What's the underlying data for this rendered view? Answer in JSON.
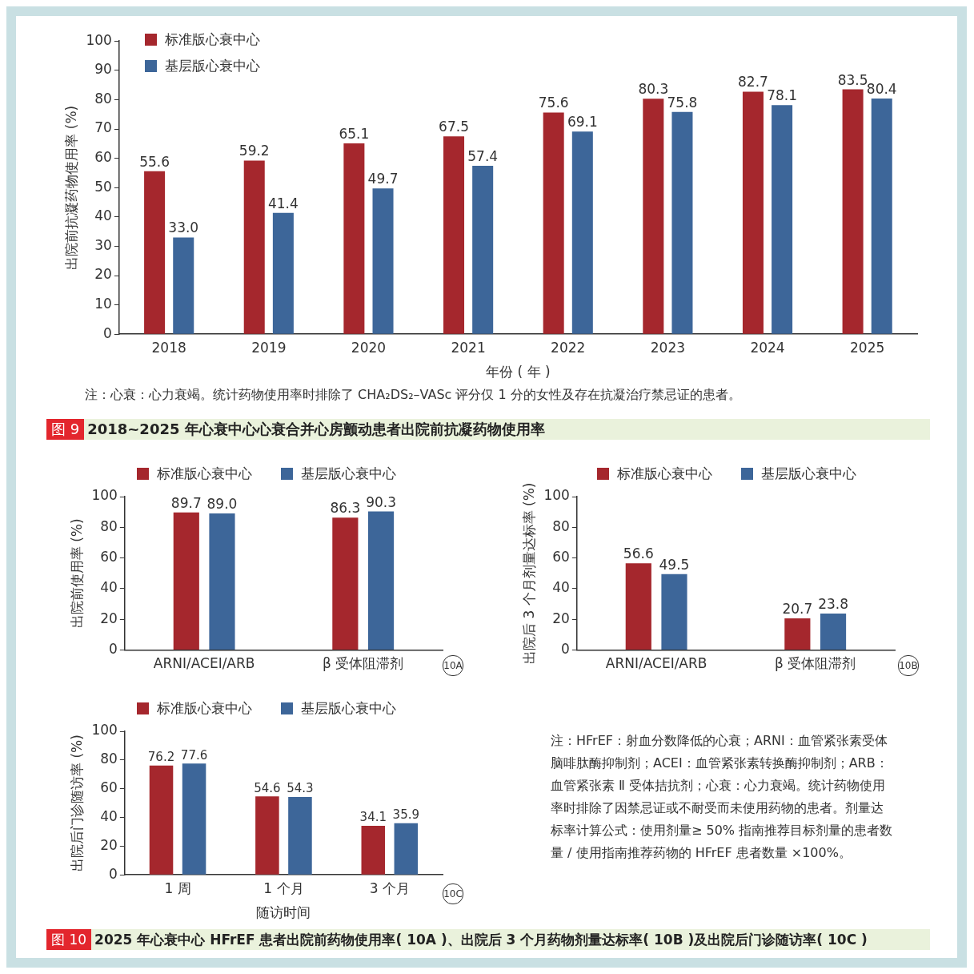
{
  "chart_data": [
    {
      "type": "bar",
      "title": "2018~2025 年心衰中心心衰合并心房颤动患者出院前抗凝药物使用率",
      "xlabel": "年份 ( 年 )",
      "ylabel": "出院前抗凝药物使用率 (%)",
      "categories": [
        "2018",
        "2019",
        "2020",
        "2021",
        "2022",
        "2023",
        "2024",
        "2025"
      ],
      "series": [
        {
          "name": "标准版心衰中心",
          "color": "#a5272d",
          "values": [
            55.6,
            59.2,
            65.1,
            67.5,
            75.6,
            80.3,
            82.7,
            83.5
          ],
          "value_labels": [
            "55.6",
            "59.2",
            "65.1",
            "67.5",
            "75.6",
            "80.3",
            "82.7",
            "83.5"
          ]
        },
        {
          "name": "基层版心衰中心",
          "color": "#3d6699",
          "values": [
            33.0,
            41.4,
            49.7,
            57.4,
            69.1,
            75.8,
            78.1,
            80.4
          ],
          "value_labels": [
            "33.0",
            "41.4",
            "49.7",
            "57.4",
            "69.1",
            "75.8",
            "78.1",
            "80.4"
          ]
        }
      ],
      "ylim": [
        0,
        100
      ],
      "yticks": [
        0,
        10,
        20,
        30,
        40,
        50,
        60,
        70,
        80,
        90,
        100
      ],
      "legend": "top left",
      "annotations": [
        "注：心衰：心力衰竭。统计药物使用率时排除了 CHA₂DS₂–VASc 评分仅 1 分的女性及存在抗凝治疗禁忌证的患者。",
        "图 9"
      ]
    },
    {
      "type": "bar",
      "ylabel": "出院前使用率 (%)",
      "categories": [
        "ARNI/ACEI/ARB",
        "β 受体阻滞剂"
      ],
      "series": [
        {
          "name": "标准版心衰中心",
          "color": "#a5272d",
          "values": [
            89.7,
            86.3
          ],
          "value_labels": [
            "89.7",
            "86.3"
          ]
        },
        {
          "name": "基层版心衰中心",
          "color": "#3d6699",
          "values": [
            89.0,
            90.3
          ],
          "value_labels": [
            "89.0",
            "90.3"
          ]
        }
      ],
      "ylim": [
        0,
        100
      ],
      "yticks": [
        0,
        20,
        40,
        60,
        80,
        100
      ],
      "legend": "top",
      "annotations": [
        "10A"
      ]
    },
    {
      "type": "bar",
      "ylabel": "出院后 3 个月剂量达标率 (%)",
      "categories": [
        "ARNI/ACEI/ARB",
        "β 受体阻滞剂"
      ],
      "series": [
        {
          "name": "标准版心衰中心",
          "color": "#a5272d",
          "values": [
            56.6,
            20.7
          ],
          "value_labels": [
            "56.6",
            "20.7"
          ]
        },
        {
          "name": "基层版心衰中心",
          "color": "#3d6699",
          "values": [
            49.5,
            23.8
          ],
          "value_labels": [
            "49.5",
            "23.8"
          ]
        }
      ],
      "ylim": [
        0,
        100
      ],
      "yticks": [
        0,
        20,
        40,
        60,
        80,
        100
      ],
      "legend": "top",
      "annotations": [
        "10B"
      ]
    },
    {
      "type": "bar",
      "xlabel": "随访时间",
      "ylabel": "出院后门诊随访率 (%)",
      "categories": [
        "1 周",
        "1 个月",
        "3 个月"
      ],
      "series": [
        {
          "name": "标准版心衰中心",
          "color": "#a5272d",
          "values": [
            76.2,
            54.6,
            34.1
          ],
          "value_labels": [
            "76.2",
            "54.6",
            "34.1"
          ]
        },
        {
          "name": "基层版心衰中心",
          "color": "#3d6699",
          "values": [
            77.6,
            54.3,
            35.9
          ],
          "value_labels": [
            "77.6",
            "54.3",
            "35.9"
          ]
        }
      ],
      "ylim": [
        0,
        100
      ],
      "yticks": [
        0,
        20,
        40,
        60,
        80,
        100
      ],
      "legend": "top",
      "annotations": [
        "10C",
        "注：HFrEF：射血分数降低的心衰；ARNI：血管紧张素受体脑啡肽酶抑制剂；ACEI：血管紧张素转换酶抑制剂；ARB：血管紧张素 Ⅱ 受体拮抗剂；心衰：心力衰竭。统计药物使用率时排除了因禁忌证或不耐受而未使用药物的患者。剂量达标率计算公式：使用剂量≥ 50% 指南推荐目标剂量的患者数量 / 使用指南推荐药物的 HFrEF 患者数量 ×100%。",
        "图 10",
        "2025 年心衰中心 HFrEF 患者出院前药物使用率( 10A )、出院后 3 个月药物剂量达标率( 10B )及出院后门诊随访率( 10C )"
      ]
    }
  ]
}
